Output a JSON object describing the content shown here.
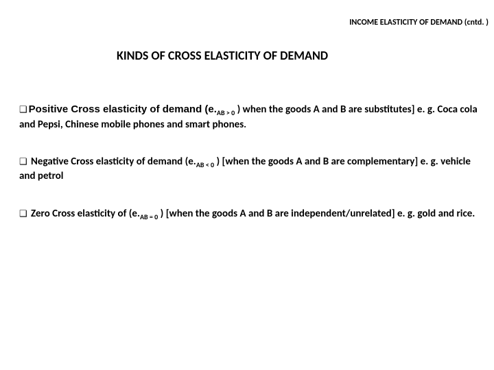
{
  "header": {
    "right": "INCOME ELASTICITY OF DEMAND (cntd. )"
  },
  "title": "KINDS OF CROSS ELASTICITY OF DEMAND",
  "items": [
    {
      "bullet": "❑",
      "lead_alt": "Positive Cross elasticity of demand (e.",
      "sub": "AB  >  0",
      "cond_suffix": " ) ",
      "desc": "when the goods  A and B are substitutes] e. g. Coca cola and Pepsi, Chinese mobile phones and smart phones",
      "desc_trail": "."
    },
    {
      "bullet": "❑",
      "lead": " Negative Cross elasticity of demand (e.",
      "sub": "AB  <  0",
      "cond_suffix": " ) ",
      "desc_bold": "[",
      "desc": "when the goods A and B are complementary] e. g.  vehicle and petrol"
    },
    {
      "bullet": "❑",
      "lead": " Zero Cross elasticity of (e.",
      "sub": "AB   = 0",
      "cond_suffix": " ) [when the goods A and B are independent/unrelated] e. g. gold and rice."
    }
  ]
}
